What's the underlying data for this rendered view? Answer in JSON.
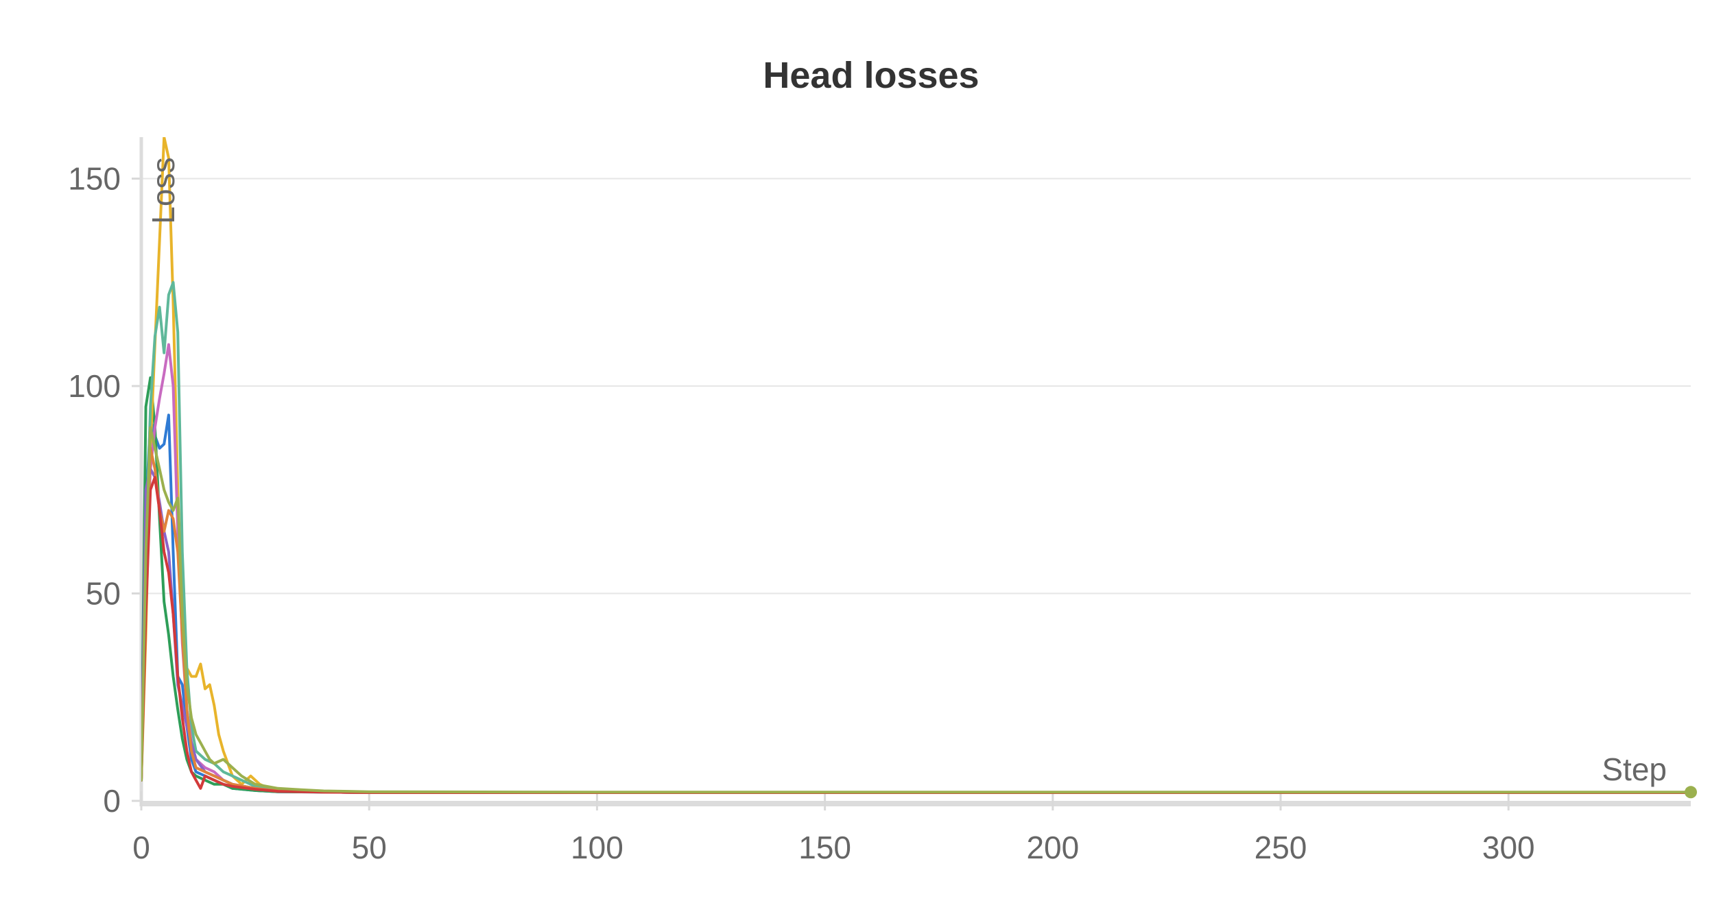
{
  "chart_data": {
    "type": "line",
    "title": "Head losses",
    "xlabel": "Step",
    "ylabel": "Loss",
    "xlim": [
      0,
      340
    ],
    "ylim": [
      0,
      160
    ],
    "x_ticks": [
      0,
      50,
      100,
      150,
      200,
      250,
      300
    ],
    "y_ticks": [
      0,
      50,
      100,
      150
    ],
    "grid": true,
    "legend": "none",
    "series": [
      {
        "color": "#2f7bd4",
        "x": [
          0,
          1,
          2,
          3,
          4,
          5,
          6,
          7,
          8,
          9,
          10,
          11,
          12,
          14,
          16,
          18,
          20,
          25,
          30,
          40,
          50,
          100,
          150,
          200,
          250,
          300,
          340
        ],
        "y": [
          5,
          70,
          92,
          88,
          85,
          86,
          93,
          60,
          30,
          28,
          18,
          10,
          7,
          6,
          5,
          4,
          3,
          2.5,
          2.2,
          2.1,
          2,
          2,
          2,
          2,
          2,
          2,
          2
        ]
      },
      {
        "color": "#2e9e58",
        "x": [
          0,
          1,
          2,
          3,
          4,
          5,
          6,
          7,
          8,
          9,
          10,
          11,
          12,
          14,
          16,
          18,
          20,
          25,
          30,
          40,
          50,
          100,
          150,
          200,
          250,
          300,
          340
        ],
        "y": [
          6,
          95,
          102,
          90,
          68,
          48,
          40,
          30,
          22,
          15,
          10,
          7,
          6,
          5,
          4,
          4,
          3,
          2.5,
          2.2,
          2.1,
          2,
          2,
          2,
          2,
          2,
          2,
          2
        ]
      },
      {
        "color": "#e8b42b",
        "x": [
          0,
          1,
          2,
          3,
          4,
          5,
          6,
          7,
          8,
          9,
          10,
          11,
          12,
          13,
          14,
          15,
          16,
          17,
          18,
          20,
          22,
          24,
          26,
          28,
          30,
          35,
          40,
          50,
          100,
          150,
          200,
          250,
          300,
          340
        ],
        "y": [
          5,
          40,
          85,
          110,
          135,
          160,
          155,
          120,
          75,
          45,
          32,
          30,
          30,
          33,
          27,
          28,
          23,
          16,
          12,
          6,
          4,
          6,
          4,
          3,
          2.5,
          2.3,
          2.1,
          2,
          2,
          2,
          2,
          2,
          2,
          2
        ]
      },
      {
        "color": "#5fb89a",
        "x": [
          0,
          1,
          2,
          3,
          4,
          5,
          6,
          7,
          8,
          9,
          10,
          11,
          12,
          14,
          16,
          18,
          20,
          22,
          25,
          30,
          35,
          40,
          50,
          100,
          150,
          200,
          250,
          300,
          340
        ],
        "y": [
          5,
          60,
          95,
          112,
          119,
          108,
          122,
          125,
          113,
          60,
          32,
          18,
          12,
          10,
          9,
          7,
          6,
          5,
          3.5,
          2.8,
          2.5,
          2.3,
          2.1,
          2,
          2,
          2,
          2,
          2,
          2
        ]
      },
      {
        "color": "#c86bc0",
        "x": [
          0,
          1,
          2,
          3,
          4,
          5,
          6,
          7,
          8,
          9,
          10,
          11,
          12,
          14,
          16,
          18,
          20,
          25,
          30,
          40,
          50,
          100,
          150,
          200,
          250,
          300,
          340
        ],
        "y": [
          5,
          55,
          80,
          90,
          97,
          103,
          110,
          100,
          65,
          38,
          22,
          14,
          10,
          8,
          7,
          5,
          4,
          3,
          2.4,
          2.1,
          2,
          2,
          2,
          2,
          2,
          2,
          2
        ]
      },
      {
        "color": "#8a63c8",
        "x": [
          0,
          1,
          2,
          3,
          4,
          5,
          6,
          7,
          8,
          9,
          10,
          11,
          12,
          14,
          16,
          18,
          20,
          25,
          30,
          40,
          50,
          100,
          150,
          200,
          250,
          300,
          340
        ],
        "y": [
          5,
          75,
          80,
          78,
          72,
          65,
          60,
          45,
          28,
          23,
          18,
          14,
          10,
          7,
          6,
          5,
          4,
          3,
          2.3,
          2.1,
          2,
          2,
          2,
          2,
          2,
          2,
          2
        ]
      },
      {
        "color": "#e0833a",
        "x": [
          0,
          1,
          2,
          3,
          4,
          5,
          6,
          7,
          8,
          9,
          10,
          11,
          12,
          14,
          16,
          18,
          20,
          25,
          30,
          40,
          50,
          100,
          150,
          200,
          250,
          300,
          340
        ],
        "y": [
          5,
          50,
          85,
          80,
          70,
          65,
          70,
          68,
          60,
          40,
          22,
          12,
          8,
          7,
          6,
          5,
          4,
          3,
          2.4,
          2.1,
          2,
          2,
          2,
          2,
          2,
          2,
          2
        ]
      },
      {
        "color": "#d23a3a",
        "x": [
          0,
          1,
          2,
          3,
          4,
          5,
          6,
          7,
          8,
          9,
          10,
          11,
          12,
          13,
          14,
          16,
          18,
          20,
          25,
          30,
          40,
          50,
          100,
          150,
          200,
          250,
          300,
          340
        ],
        "y": [
          5,
          45,
          75,
          78,
          70,
          60,
          55,
          45,
          30,
          20,
          12,
          7,
          5,
          3,
          6,
          5,
          4,
          3.5,
          2.8,
          2.3,
          2.1,
          2,
          2,
          2,
          2,
          2,
          2,
          2
        ]
      },
      {
        "color": "#9bb04e",
        "x": [
          0,
          1,
          2,
          3,
          4,
          5,
          6,
          7,
          8,
          9,
          10,
          11,
          12,
          13,
          14,
          15,
          16,
          18,
          20,
          22,
          25,
          30,
          35,
          40,
          50,
          100,
          150,
          200,
          250,
          300,
          340
        ],
        "y": [
          5,
          60,
          90,
          85,
          80,
          75,
          72,
          70,
          73,
          45,
          28,
          20,
          16,
          14,
          12,
          10,
          9,
          10,
          8,
          6,
          4,
          3,
          2.7,
          2.4,
          2.2,
          2.1,
          2.1,
          2.1,
          2.1,
          2.1,
          2.1
        ]
      }
    ]
  }
}
